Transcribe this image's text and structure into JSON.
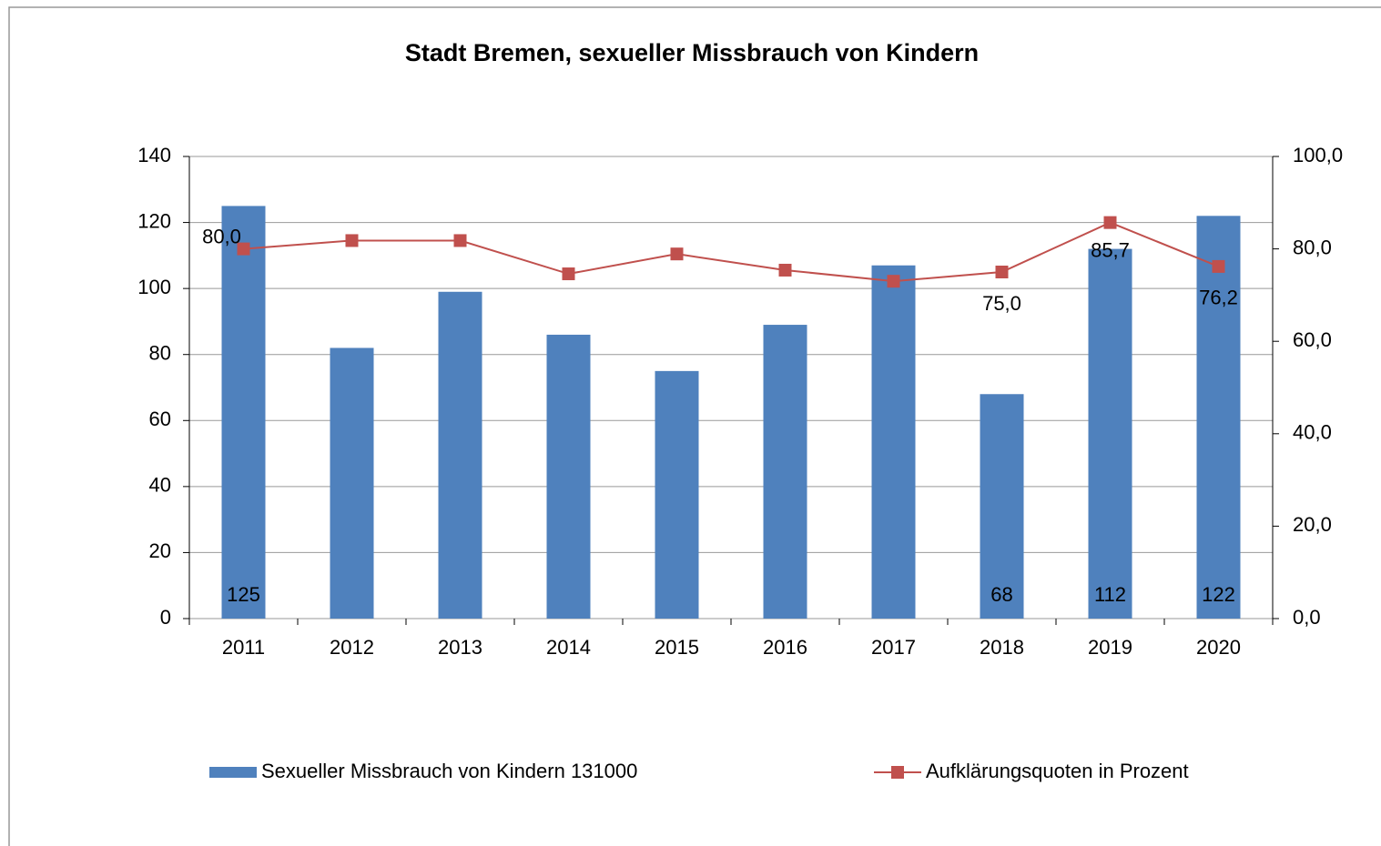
{
  "chart_data": {
    "type": "bar-line",
    "title": "Stadt Bremen, sexueller Missbrauch von Kindern",
    "categories": [
      "2011",
      "2012",
      "2013",
      "2014",
      "2015",
      "2016",
      "2017",
      "2018",
      "2019",
      "2020"
    ],
    "series": [
      {
        "name": "Sexueller Missbrauch von Kindern 131000",
        "type": "bar",
        "color": "#4f81bd",
        "values": [
          125,
          82,
          99,
          86,
          75,
          89,
          107,
          68,
          112,
          122
        ],
        "value_labels": [
          "125",
          null,
          null,
          null,
          null,
          null,
          null,
          "68",
          "112",
          "122"
        ]
      },
      {
        "name": "Aufklärungsquoten in Prozent",
        "type": "line",
        "axis": "y2",
        "color": "#c0504d",
        "values": [
          80.0,
          81.8,
          81.8,
          74.6,
          78.9,
          75.4,
          73.0,
          75.0,
          85.7,
          76.2
        ],
        "value_labels": [
          "80,0",
          null,
          null,
          null,
          null,
          null,
          null,
          "75,0",
          "85,7",
          "76,2"
        ]
      }
    ],
    "ylim": [
      0,
      140
    ],
    "yticks": [
      0,
      20,
      40,
      60,
      80,
      100,
      120,
      140
    ],
    "y2lim": [
      0,
      100
    ],
    "y2ticks": [
      {
        "value": 0,
        "label": "0,0"
      },
      {
        "value": 20,
        "label": "20,0"
      },
      {
        "value": 40,
        "label": "40,0"
      },
      {
        "value": 60,
        "label": "60,0"
      },
      {
        "value": 80,
        "label": "80,0"
      },
      {
        "value": 100,
        "label": "100,0"
      }
    ],
    "grid": true,
    "legend": "bottom"
  }
}
